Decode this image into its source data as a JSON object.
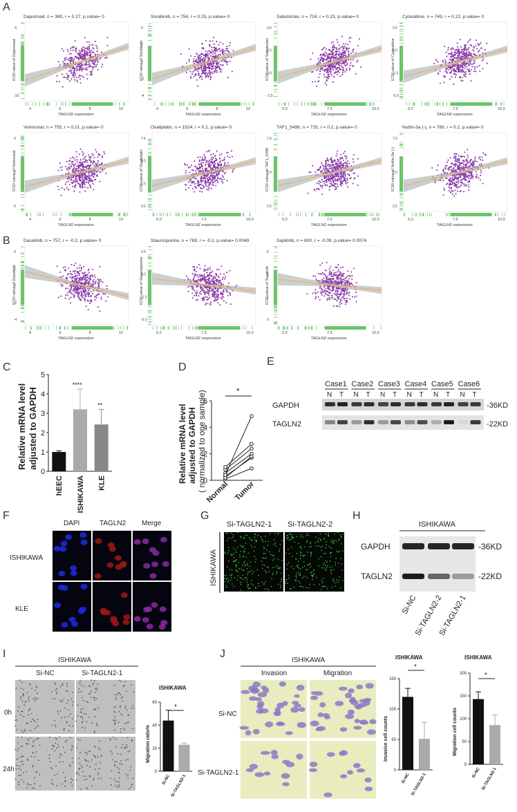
{
  "panel_letters": {
    "A": "A",
    "B": "B",
    "C": "C",
    "D": "D",
    "E": "E",
    "F": "F",
    "G": "G",
    "H": "H",
    "I": "I",
    "J": "J"
  },
  "scatter_common": {
    "xlabel": "TAGLN2 expression"
  },
  "chart_data": [
    {
      "type": "scatter",
      "title": "Daporinad, n = 380, r = 0.27, p.value= 0",
      "ylabel": "IC50 value of Daporinad",
      "xticks": [
        "4",
        "6",
        "8",
        "10"
      ],
      "yticks": [
        "-5",
        "-10"
      ],
      "slope": 0.27,
      "n": 380,
      "seed": 11
    },
    {
      "type": "scatter",
      "title": "Sorafenib, n = 754, r = 0.25, p.value= 0",
      "ylabel": "IC50 value of Sorafenib",
      "xticks": [
        "4",
        "6",
        "8",
        "10"
      ],
      "yticks": [
        "4",
        "2",
        "0",
        "-2",
        "-4"
      ],
      "slope": 0.25,
      "n": 754,
      "seed": 12
    },
    {
      "type": "scatter",
      "title": "Sabutoclax, n = 724, r = 0.23, p.value= 0",
      "ylabel": "IC50 value of Sabutoclax",
      "xticks": [
        "5.0",
        "7.5",
        "10.0"
      ],
      "yticks": [
        "3.5",
        "2.5",
        "0.0",
        "-2.5"
      ],
      "slope": 0.23,
      "n": 724,
      "seed": 13
    },
    {
      "type": "scatter",
      "title": "Cytarabine, n = 749, r = 0.22, p.value= 0",
      "ylabel": "IC50 value of Cytarabine",
      "xticks": [
        "5.0",
        "7.5",
        "10.0"
      ],
      "yticks": [
        "2.5",
        "0.0",
        "-2.5",
        "-5.0"
      ],
      "slope": 0.22,
      "n": 749,
      "seed": 14
    },
    {
      "type": "scatter",
      "title": "Vorinostat, n = 755, r = 0.21, p.value= 0",
      "ylabel": "IC50 value of Vorinostat",
      "xticks": [
        "4",
        "6",
        "8",
        "10"
      ],
      "yticks": [
        "4",
        "2",
        "0"
      ],
      "slope": 0.21,
      "n": 755,
      "seed": 15
    },
    {
      "type": "scatter",
      "title": "Oxaliplatin, n = 1524, r = 0.2, p.value= 0",
      "ylabel": "IC50 value of Oxaliplatin",
      "xticks": [
        "5.0",
        "7.5",
        "10.0"
      ],
      "yticks": [
        "7.5",
        "5.0",
        "2.5",
        "0.0"
      ],
      "slope": 0.2,
      "n": 1524,
      "seed": 16
    },
    {
      "type": "scatter",
      "title": "TAF1_5496, n = 725, r = 0.2, p.value= 0",
      "ylabel": "IC50 value of TAF1_5496",
      "xticks": [
        "5.0",
        "7.5",
        "10.0"
      ],
      "yticks": [
        "7.5",
        "5.0",
        "2.5"
      ],
      "slope": 0.2,
      "n": 725,
      "seed": 17
    },
    {
      "type": "scatter",
      "title": "Nutlin-3a (-), n = 769, r = 0.2, p.value= 0",
      "ylabel": "IC50 value of Nutlin-3a (-)",
      "xticks": [
        "5.0",
        "7.5",
        "10.0"
      ],
      "yticks": [
        "7.5",
        "5.0",
        "2.5"
      ],
      "slope": 0.2,
      "n": 769,
      "seed": 18
    },
    {
      "type": "scatter",
      "title": "Dasatinib, n = 757, r = -0.2, p.value= 0",
      "ylabel": "IC50 value of Dasatinib",
      "xticks": [
        "4",
        "6",
        "8",
        "10"
      ],
      "yticks": [
        "4",
        "2",
        "0",
        "-2",
        "-4"
      ],
      "slope": -0.2,
      "n": 757,
      "seed": 19
    },
    {
      "type": "scatter",
      "title": "Staurosporine, n = 769, r = -0.1, p.value= 0.0049",
      "ylabel": "IC50 value of Staurosporine",
      "xticks": [
        "5.0",
        "7.5",
        "10.0"
      ],
      "yticks": [
        "2.5",
        "0.0",
        "-2.5",
        "-5.0"
      ],
      "slope": -0.1,
      "n": 769,
      "seed": 20
    },
    {
      "type": "scatter",
      "title": "Sapitinib, n = 800, r = -0.09, p.value= 0.0074",
      "ylabel": "IC50 value of Sapitinib",
      "xticks": [
        "5.0",
        "7.5",
        "10.0"
      ],
      "yticks": [
        "6",
        "4",
        "2",
        "0"
      ],
      "slope": -0.09,
      "n": 800,
      "seed": 21
    },
    {
      "type": "bar",
      "id": "C",
      "categories": [
        "hEEC",
        "ISHIKAWA",
        "KLE"
      ],
      "values": [
        1.0,
        3.2,
        2.42
      ],
      "errors": [
        0.06,
        1.05,
        0.78
      ],
      "colors": [
        "#111111",
        "#aaaaaa",
        "#888888"
      ],
      "significance": [
        "",
        "****",
        "**"
      ],
      "ylabel_line1": "Relative mRNA level",
      "ylabel_line2": "adjusted to GAPDH",
      "ylim": [
        0,
        5
      ],
      "yticks": [
        "0",
        "1",
        "2",
        "3",
        "4",
        "5"
      ]
    },
    {
      "type": "line",
      "id": "D",
      "categories": [
        "Normal",
        "Tumor"
      ],
      "pairs": [
        [
          0.1,
          0.9
        ],
        [
          0.3,
          1.7
        ],
        [
          0.55,
          2.0
        ],
        [
          0.2,
          1.8
        ],
        [
          0.8,
          2.4
        ],
        [
          1.0,
          2.75
        ],
        [
          0.4,
          4.85
        ]
      ],
      "ylabel_line1": "Relative mRNA level",
      "ylabel_line2": "adjusted to GAPDH",
      "ylabel_line3": "( normalized to one sample)",
      "ylim": [
        0,
        6
      ],
      "yticks": [
        "0",
        "2",
        "4",
        "6"
      ],
      "significance": "*"
    },
    {
      "type": "bar",
      "id": "I",
      "title": "ISHIKAWA",
      "categories": [
        "Si-NC",
        "Si-TAGLN2-1"
      ],
      "values": [
        44,
        23
      ],
      "errors": [
        9,
        1.5
      ],
      "colors": [
        "#111111",
        "#aaaaaa"
      ],
      "ylabel": "Migration ratio%",
      "ylim": [
        0,
        60
      ],
      "yticks": [
        "0",
        "20",
        "40",
        "60"
      ],
      "significance": "*"
    },
    {
      "type": "bar",
      "id": "J1",
      "title": "ISHIKAWA",
      "categories": [
        "Si-NC",
        "Si-TAGLN2-1"
      ],
      "values": [
        120,
        51
      ],
      "errors": [
        14,
        27
      ],
      "colors": [
        "#111111",
        "#aaaaaa"
      ],
      "ylabel": "Invasive cell counts",
      "ylim": [
        0,
        150
      ],
      "yticks": [
        "0",
        "50",
        "100",
        "150"
      ],
      "significance": "*"
    },
    {
      "type": "bar",
      "id": "J2",
      "title": "ISHIKAWA",
      "categories": [
        "Si-NC",
        "Si-TAGLN2-1"
      ],
      "values": [
        143,
        86
      ],
      "errors": [
        16,
        22
      ],
      "colors": [
        "#111111",
        "#aaaaaa"
      ],
      "ylabel": "Migration cell counts",
      "ylim": [
        0,
        200
      ],
      "yticks": [
        "0",
        "50",
        "100",
        "150",
        "200"
      ],
      "significance": "*"
    }
  ],
  "panelE": {
    "cases": [
      "Case1",
      "Case2",
      "Case3",
      "Case4",
      "Case5",
      "Case6"
    ],
    "lanes": [
      "N",
      "T"
    ],
    "rows": [
      "GAPDH",
      "TAGLN2"
    ],
    "sizes": [
      "-36KD",
      "-22KD"
    ]
  },
  "panelF": {
    "cols": [
      "DAPI",
      "TAGLN2",
      "Merge"
    ],
    "rows": [
      "ISHIKAWA",
      "KLE"
    ]
  },
  "panelG": {
    "cols": [
      "Si-TAGLN2-1",
      "Si-TAGLN2-2"
    ],
    "side": "ISHIKAWA"
  },
  "panelH": {
    "title": "ISHIKAWA",
    "rows": [
      "GAPDH",
      "TAGLN2"
    ],
    "sizes": [
      "-36KD",
      "-22KD"
    ],
    "lanes": [
      "Si-NC",
      "Si-TAGLN2-2",
      "Si-TAGLN2-1"
    ]
  },
  "panelI": {
    "title": "ISHIKAWA",
    "cols": [
      "Si-NC",
      "Si-TAGLN2-1"
    ],
    "rows": [
      "0h",
      "24h"
    ]
  },
  "panelJ": {
    "title": "ISHIKAWA",
    "cols": [
      "Invasion",
      "Migration"
    ],
    "rows": [
      "Si-NC",
      "Si-TAGLN2-1"
    ]
  }
}
